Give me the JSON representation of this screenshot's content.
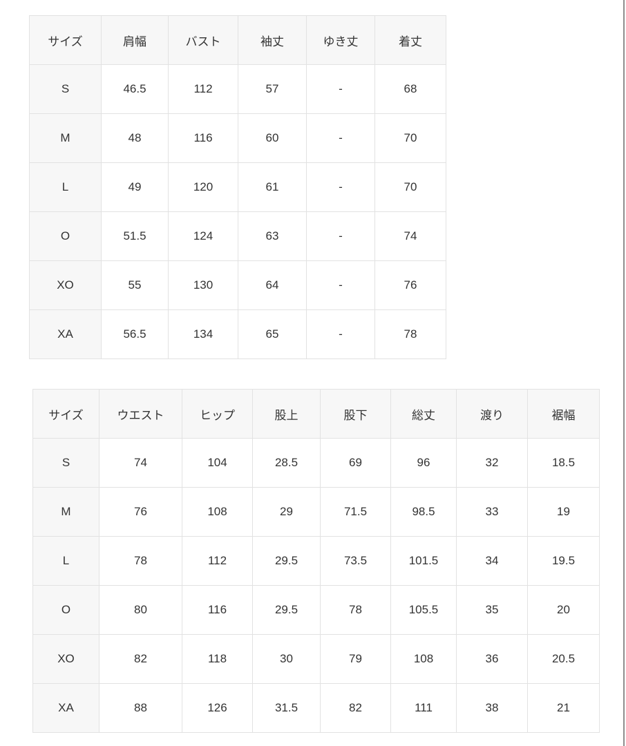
{
  "colors": {
    "page_background": "#ffffff",
    "header_cell_background": "#f7f7f7",
    "size_column_background": "#f7f7f7",
    "cell_border": "#e2e2e2",
    "text": "#333333",
    "right_edge_line": "#8d8d8d"
  },
  "tables": {
    "tops": {
      "headers": [
        "サイズ",
        "肩幅",
        "バスト",
        "袖丈",
        "ゆき丈",
        "着丈"
      ],
      "rows": [
        [
          "S",
          "46.5",
          "112",
          "57",
          "-",
          "68"
        ],
        [
          "M",
          "48",
          "116",
          "60",
          "-",
          "70"
        ],
        [
          "L",
          "49",
          "120",
          "61",
          "-",
          "70"
        ],
        [
          "O",
          "51.5",
          "124",
          "63",
          "-",
          "74"
        ],
        [
          "XO",
          "55",
          "130",
          "64",
          "-",
          "76"
        ],
        [
          "XA",
          "56.5",
          "134",
          "65",
          "-",
          "78"
        ]
      ]
    },
    "bottoms": {
      "headers": [
        "サイズ",
        "ウエスト",
        "ヒップ",
        "股上",
        "股下",
        "総丈",
        "渡り",
        "裾幅"
      ],
      "rows": [
        [
          "S",
          "74",
          "104",
          "28.5",
          "69",
          "96",
          "32",
          "18.5"
        ],
        [
          "M",
          "76",
          "108",
          "29",
          "71.5",
          "98.5",
          "33",
          "19"
        ],
        [
          "L",
          "78",
          "112",
          "29.5",
          "73.5",
          "101.5",
          "34",
          "19.5"
        ],
        [
          "O",
          "80",
          "116",
          "29.5",
          "78",
          "105.5",
          "35",
          "20"
        ],
        [
          "XO",
          "82",
          "118",
          "30",
          "79",
          "108",
          "36",
          "20.5"
        ],
        [
          "XA",
          "88",
          "126",
          "31.5",
          "82",
          "111",
          "38",
          "21"
        ]
      ]
    }
  }
}
